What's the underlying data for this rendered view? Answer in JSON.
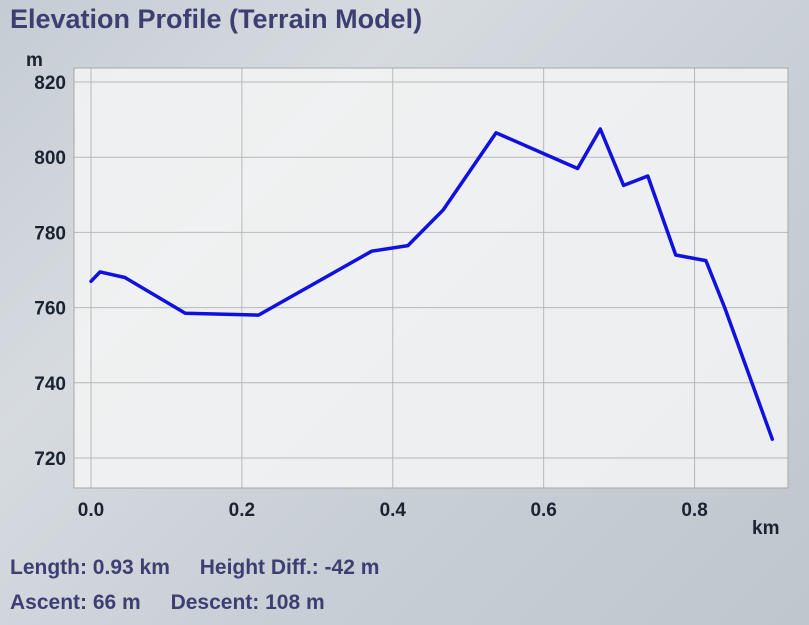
{
  "title": "Elevation Profile (Terrain Model)",
  "stats": {
    "length": "Length: 0.93 km",
    "height_diff": "Height Diff.: -42 m",
    "ascent": "Ascent: 66 m",
    "descent": "Descent: 108 m"
  },
  "colors": {
    "line": "#1010e0",
    "grid": "#b8b8b8",
    "plot_bg": "#f3f4f5",
    "title": "#3d3f72"
  },
  "chart_data": {
    "type": "line",
    "xlabel": "km",
    "ylabel": "m",
    "xlim": [
      0.0,
      0.9
    ],
    "ylim": [
      720,
      820
    ],
    "xticks": [
      "0.0",
      "0.2",
      "0.4",
      "0.6",
      "0.8"
    ],
    "yticks": [
      "820",
      "800",
      "780",
      "760",
      "740",
      "720"
    ],
    "grid": true,
    "series": [
      {
        "x": [
          0.0,
          0.012,
          0.045,
          0.125,
          0.222,
          0.372,
          0.42,
          0.467,
          0.537,
          0.645,
          0.675,
          0.706,
          0.738,
          0.775,
          0.815,
          0.84,
          0.903
        ],
        "y": [
          767,
          769.5,
          768,
          758.5,
          758,
          775,
          776.5,
          786,
          806.5,
          797,
          807.5,
          792.5,
          795,
          774,
          772.5,
          760,
          725
        ]
      }
    ]
  }
}
